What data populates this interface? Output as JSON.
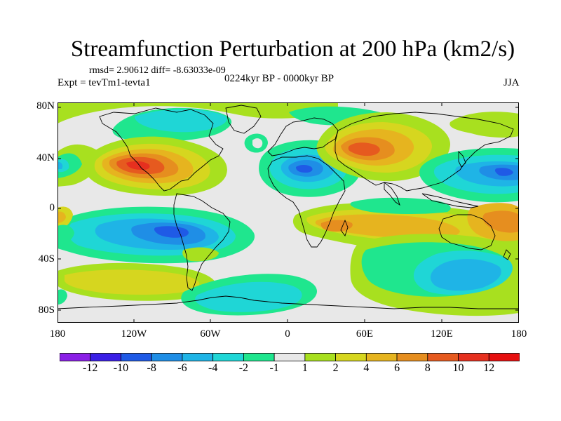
{
  "title": "Streamfunction Perturbation at 200 hPa (km2/s)",
  "stats_line": "rmsd= 2.90612  diff= -8.63033e-09",
  "experiment": "Expt = tevTm1-tevta1",
  "period": "0224kyr BP - 0000kyr BP",
  "season": "JJA",
  "lat_labels": [
    "80N",
    "40N",
    "0",
    "40S",
    "80S"
  ],
  "lon_labels": [
    "180",
    "120W",
    "60W",
    "0",
    "60E",
    "120E",
    "180"
  ],
  "colorbar": {
    "labels": [
      "-12",
      "-10",
      "-8",
      "-6",
      "-4",
      "-2",
      "-1",
      "1",
      "2",
      "4",
      "6",
      "8",
      "10",
      "12"
    ],
    "colors": [
      "#8a1fe6",
      "#3a1fe6",
      "#1f5ae6",
      "#1f8ee6",
      "#1fb4e6",
      "#1fd6d6",
      "#1fe68e",
      "#e8e8e8",
      "#a8e01f",
      "#d6d61f",
      "#e6b41f",
      "#e68e1f",
      "#e65a1f",
      "#e6301f",
      "#e60f0f"
    ]
  },
  "colors": {
    "neutral": "#e8e8e8",
    "coastline": "#000000"
  }
}
